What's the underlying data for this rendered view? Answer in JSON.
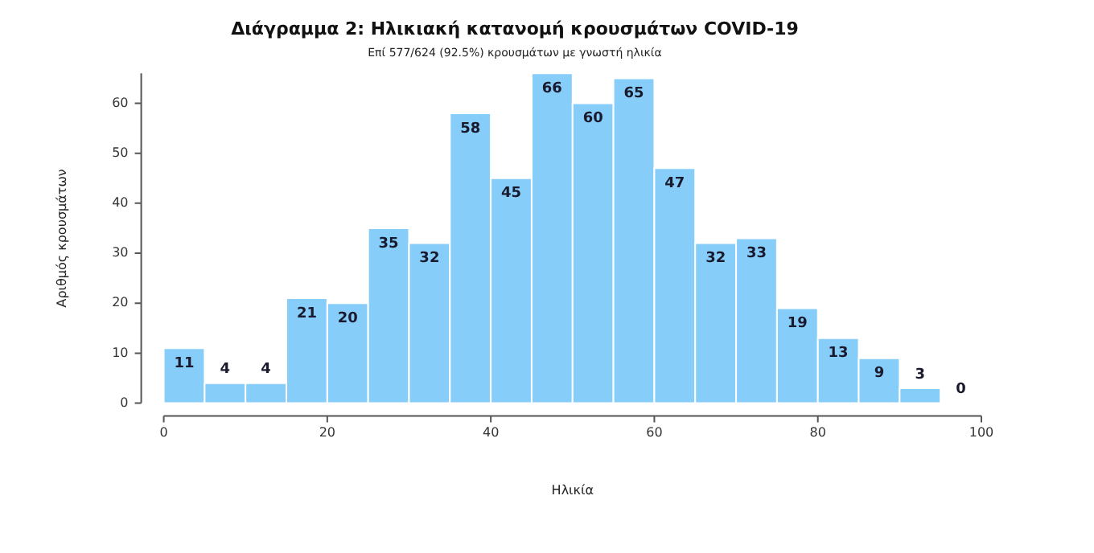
{
  "chart_data": {
    "type": "histogram",
    "title": "Διάγραμμα 2: Ηλικιακή κατανομή κρουσμάτων COVID-19",
    "subtitle": "Επί 577/624 (92.5%) κρουσμάτων με γνωστή ηλικία",
    "xlabel": "Ηλικία",
    "ylabel": "Αριθμός κρουσμάτων",
    "bins": [
      0,
      5,
      10,
      15,
      20,
      25,
      30,
      35,
      40,
      45,
      50,
      55,
      60,
      65,
      70,
      75,
      80,
      85,
      90,
      95,
      100
    ],
    "values": [
      11,
      4,
      4,
      21,
      20,
      35,
      32,
      58,
      45,
      66,
      60,
      65,
      47,
      32,
      33,
      19,
      13,
      9,
      3,
      0
    ],
    "color": "#87cdfa",
    "xlim": [
      0,
      100
    ],
    "xticks": [
      0,
      20,
      40,
      60,
      80,
      100
    ],
    "ylim": [
      0,
      66
    ],
    "yticks": [
      0,
      10,
      20,
      30,
      40,
      50,
      60
    ],
    "grid": false,
    "data_labels": true,
    "legend": false
  }
}
